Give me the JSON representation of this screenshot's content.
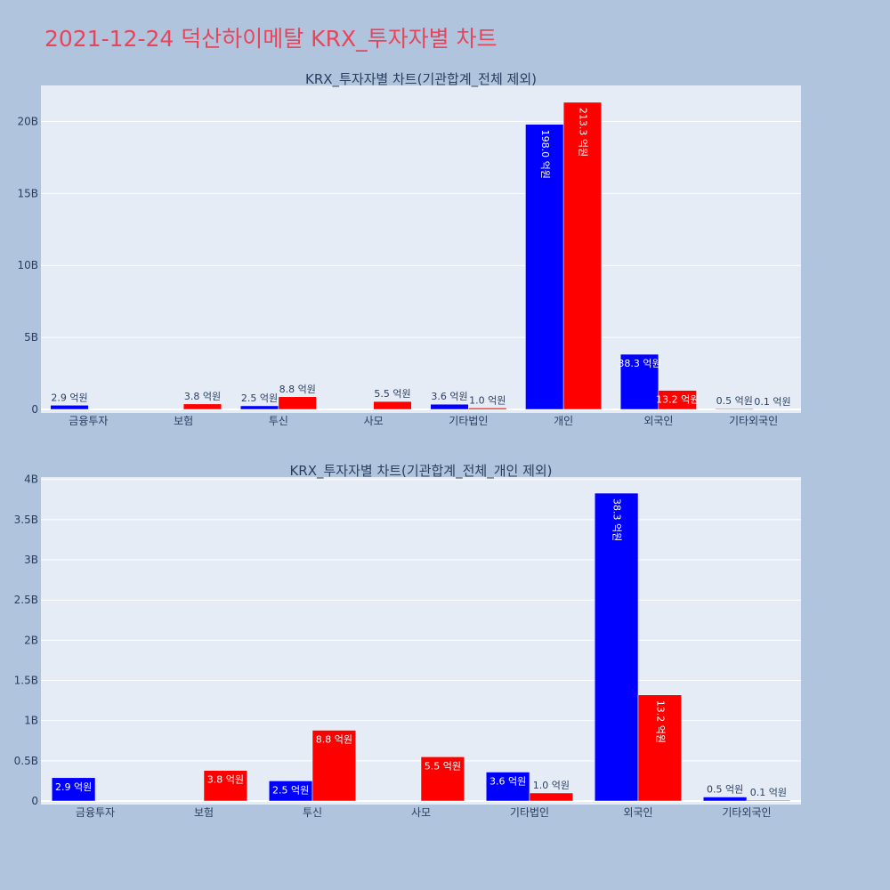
{
  "page": {
    "title": "2021-12-24 덕산하이메탈 KRX_투자자별 차트",
    "title_color": "#e8455a",
    "background": "#b0c4de",
    "plot_background": "#e5ecf6"
  },
  "chart_data": [
    {
      "type": "bar",
      "title": "KRX_투자자별 차트(기관합계_전체 제외)",
      "categories": [
        "금융투자",
        "보험",
        "투신",
        "사모",
        "기타법인",
        "개인",
        "외국인",
        "기타외국인"
      ],
      "series": [
        {
          "color": "#0000ff",
          "values": [
            0.29,
            0,
            0.25,
            0,
            0.36,
            19.8,
            3.83,
            0.05
          ],
          "labels": [
            "2.9 억원",
            "",
            "2.5 억원",
            "",
            "3.6 억원",
            "198.0 억원",
            "38.3 억원",
            "0.5 억원"
          ]
        },
        {
          "color": "#ff0000",
          "values": [
            0,
            0.38,
            0.88,
            0.55,
            0.1,
            21.33,
            1.32,
            0.01
          ],
          "labels": [
            "",
            "3.8 억원",
            "8.8 억원",
            "5.5 억원",
            "1.0 억원",
            "213.3 억원",
            "13.2 억원",
            "0.1 억원"
          ]
        }
      ],
      "yticks": [
        0,
        5,
        10,
        15,
        20
      ],
      "ytick_labels": [
        "0",
        "5B",
        "10B",
        "15B",
        "20B"
      ],
      "ylim": [
        0,
        22.5
      ],
      "grid": true
    },
    {
      "type": "bar",
      "title": "KRX_투자자별 차트(기관합계_전체_개인 제외)",
      "categories": [
        "금융투자",
        "보험",
        "투신",
        "사모",
        "기타법인",
        "외국인",
        "기타외국인"
      ],
      "series": [
        {
          "color": "#0000ff",
          "values": [
            0.29,
            0,
            0.25,
            0,
            0.36,
            3.83,
            0.05
          ],
          "labels": [
            "2.9 억원",
            "",
            "2.5 억원",
            "",
            "3.6 억원",
            "38.3 억원",
            "0.5 억원"
          ]
        },
        {
          "color": "#ff0000",
          "values": [
            0,
            0.38,
            0.88,
            0.55,
            0.1,
            1.32,
            0.01
          ],
          "labels": [
            "",
            "3.8 억원",
            "8.8 억원",
            "5.5 억원",
            "1.0 억원",
            "13.2 억원",
            "0.1 억원"
          ]
        }
      ],
      "yticks": [
        0,
        0.5,
        1,
        1.5,
        2,
        2.5,
        3,
        3.5,
        4
      ],
      "ytick_labels": [
        "0",
        "0.5B",
        "1B",
        "1.5B",
        "2B",
        "2.5B",
        "3B",
        "3.5B",
        "4B"
      ],
      "ylim": [
        0,
        4.03
      ],
      "grid": true
    }
  ]
}
